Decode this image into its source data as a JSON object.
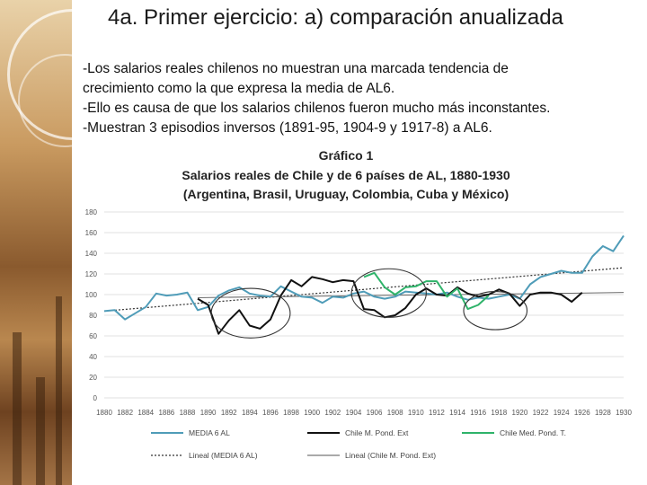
{
  "slide": {
    "title": "4a. Primer ejercicio: a) comparación anualizada",
    "bullets": [
      "-Los salarios reales chilenos no muestran una marcada tendencia de",
      "crecimiento como la que expresa la media de AL6.",
      "-Ello es causa de que los salarios chilenos fueron mucho más inconstantes.",
      "-Muestran 3 episodios inversos (1891-95, 1904-9 y 1917-8) a AL6."
    ]
  },
  "colors": {
    "media": "#4f9cb8",
    "chile_ext": "#111111",
    "chile_t": "#2fb36a",
    "lineal_media": "#333333",
    "lineal_chile": "#555555",
    "grid": "#d9d9d9"
  },
  "chart_data": {
    "type": "line",
    "title_lines": [
      "Gráfico 1",
      "Salarios reales de Chile y de 6 países de AL, 1880-1930",
      "(Argentina, Brasil, Uruguay, Colombia, Cuba y México)"
    ],
    "ylim": [
      0,
      180
    ],
    "yticks": [
      0,
      20,
      40,
      60,
      80,
      100,
      120,
      140,
      160,
      180
    ],
    "xlim": [
      1880,
      1930
    ],
    "xticks": [
      1880,
      1882,
      1884,
      1886,
      1888,
      1890,
      1892,
      1894,
      1896,
      1898,
      1900,
      1902,
      1904,
      1906,
      1908,
      1910,
      1912,
      1914,
      1916,
      1918,
      1920,
      1922,
      1924,
      1926,
      1928,
      1930
    ],
    "grid": true,
    "legend_position": "bottom",
    "series": [
      {
        "name": "MEDIA 6 AL",
        "x": [
          1880,
          1881,
          1882,
          1883,
          1884,
          1885,
          1886,
          1887,
          1888,
          1889,
          1890,
          1891,
          1892,
          1893,
          1894,
          1895,
          1896,
          1897,
          1898,
          1899,
          1900,
          1901,
          1902,
          1903,
          1904,
          1905,
          1906,
          1907,
          1908,
          1909,
          1910,
          1911,
          1912,
          1913,
          1914,
          1915,
          1916,
          1917,
          1918,
          1919,
          1920,
          1921,
          1922,
          1923,
          1924,
          1925,
          1926,
          1927,
          1928,
          1929,
          1930
        ],
        "values": [
          84,
          85,
          76,
          82,
          88,
          101,
          99,
          100,
          102,
          85,
          88,
          99,
          104,
          107,
          101,
          99,
          98,
          108,
          103,
          98,
          97,
          92,
          98,
          97,
          101,
          103,
          98,
          96,
          98,
          103,
          102,
          101,
          100,
          102,
          98,
          95,
          97,
          96,
          98,
          100,
          96,
          110,
          117,
          120,
          123,
          121,
          121,
          137,
          147,
          142,
          157
        ]
      },
      {
        "name": "Chile M. Pond. Ext",
        "x": [
          1889,
          1890,
          1891,
          1892,
          1893,
          1894,
          1895,
          1896,
          1897,
          1898,
          1899,
          1900,
          1901,
          1902,
          1903,
          1904,
          1905,
          1906,
          1907,
          1908,
          1909,
          1910,
          1911,
          1912,
          1913,
          1914,
          1915,
          1916,
          1917,
          1918,
          1919,
          1920,
          1921,
          1922,
          1923,
          1924,
          1925,
          1926
        ],
        "values": [
          96,
          90,
          62,
          75,
          85,
          70,
          67,
          76,
          99,
          114,
          108,
          117,
          115,
          112,
          114,
          113,
          86,
          85,
          78,
          80,
          87,
          100,
          106,
          100,
          99,
          107,
          101,
          98,
          100,
          105,
          101,
          89,
          100,
          102,
          102,
          100,
          93,
          102
        ]
      },
      {
        "name": "Chile Med. Pond. T.",
        "x": [
          1905,
          1906,
          1907,
          1908,
          1909,
          1910,
          1911,
          1912,
          1913,
          1914,
          1915,
          1916,
          1917
        ],
        "values": [
          117,
          121,
          107,
          100,
          107,
          108,
          113,
          113,
          98,
          106,
          86,
          90,
          99
        ]
      },
      {
        "name": "Lineal (MEDIA 6 AL)",
        "x": [
          1880,
          1930
        ],
        "values": [
          84,
          126
        ],
        "style": "dotted"
      },
      {
        "name": "Lineal (Chile M. Pond. Ext)",
        "x": [
          1889,
          1930
        ],
        "values": [
          97,
          102
        ],
        "style": "thin"
      }
    ]
  }
}
